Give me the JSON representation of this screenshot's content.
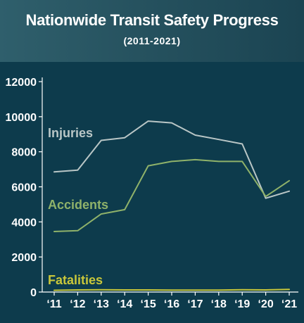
{
  "header": {
    "title": "Nationwide Transit Safety Progress",
    "subtitle": "(2011-2021)"
  },
  "colors": {
    "background": "#0d3b4c",
    "axis": "#ffffff",
    "injuries": "#b9c6c6",
    "accidents": "#8fb26a",
    "fatalities": "#c9c73a"
  },
  "chart_data": {
    "type": "line",
    "title": "Nationwide Transit Safety Progress",
    "subtitle": "(2011-2021)",
    "xlabel": "",
    "ylabel": "",
    "ylim": [
      0,
      12000
    ],
    "yticks": [
      "0",
      "2000",
      "4000",
      "6000",
      "8000",
      "10000",
      "12000"
    ],
    "categories": [
      "‘11",
      "‘12",
      "‘13",
      "‘14",
      "‘15",
      "‘16",
      "‘17",
      "‘18",
      "‘19",
      "‘20",
      "‘21"
    ],
    "grid": false,
    "legend": "inline labels",
    "series": [
      {
        "name": "Injuries",
        "color": "#b9c6c6",
        "values": [
          6850,
          6950,
          8650,
          8800,
          9750,
          9650,
          8950,
          8700,
          8450,
          5350,
          5750
        ]
      },
      {
        "name": "Accidents",
        "color": "#8fb26a",
        "values": [
          3450,
          3500,
          4450,
          4700,
          7200,
          7450,
          7550,
          7450,
          7450,
          5450,
          6350
        ]
      },
      {
        "name": "Fatalities",
        "color": "#c9c73a",
        "values": [
          100,
          120,
          130,
          120,
          120,
          110,
          110,
          110,
          130,
          120,
          150
        ]
      }
    ]
  }
}
